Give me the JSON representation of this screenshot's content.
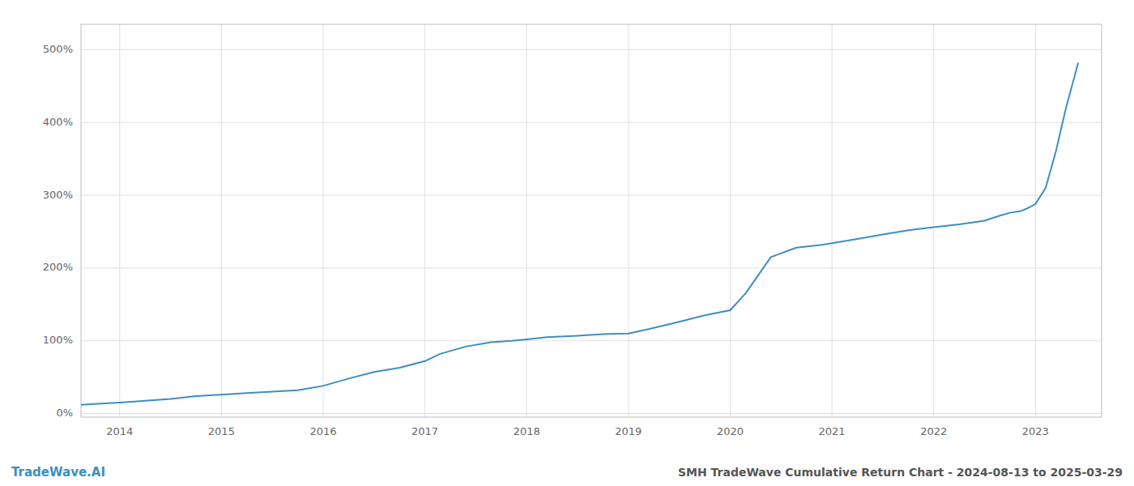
{
  "chart_data": {
    "type": "line",
    "title": "SMH TradeWave Cumulative Return Chart - 2024-08-13 to 2025-03-29",
    "annotations": [
      "TradeWave.AI"
    ],
    "color": "#3d8fbf",
    "grid": true,
    "xlim": [
      2013.62,
      2023.65
    ],
    "ylim": [
      -0.05,
      5.35
    ],
    "xticks": [
      2014,
      2015,
      2016,
      2017,
      2018,
      2019,
      2020,
      2021,
      2022,
      2023
    ],
    "yticks": [
      {
        "value": 0.0,
        "label": "0%"
      },
      {
        "value": 1.0,
        "label": "100%"
      },
      {
        "value": 2.0,
        "label": "200%"
      },
      {
        "value": 3.0,
        "label": "300%"
      },
      {
        "value": 4.0,
        "label": "400%"
      },
      {
        "value": 5.0,
        "label": "500%"
      }
    ],
    "x": [
      2013.62,
      2013.75,
      2014.0,
      2014.2,
      2014.5,
      2014.75,
      2015.0,
      2015.25,
      2015.5,
      2015.75,
      2016.0,
      2016.25,
      2016.5,
      2016.75,
      2017.0,
      2017.15,
      2017.4,
      2017.65,
      2017.85,
      2018.0,
      2018.2,
      2018.5,
      2018.75,
      2019.0,
      2019.2,
      2019.5,
      2019.75,
      2020.0,
      2020.15,
      2020.4,
      2020.65,
      2020.9,
      2021.0,
      2021.25,
      2021.5,
      2021.75,
      2022.0,
      2022.25,
      2022.5,
      2022.65,
      2022.75,
      2022.85,
      2022.92,
      2023.0,
      2023.1,
      2023.2,
      2023.3,
      2023.42
    ],
    "values": [
      0.12,
      0.13,
      0.15,
      0.17,
      0.2,
      0.24,
      0.26,
      0.28,
      0.3,
      0.32,
      0.38,
      0.48,
      0.57,
      0.63,
      0.72,
      0.82,
      0.92,
      0.98,
      1.0,
      1.02,
      1.05,
      1.07,
      1.09,
      1.1,
      1.16,
      1.26,
      1.35,
      1.42,
      1.65,
      2.15,
      2.28,
      2.32,
      2.34,
      2.4,
      2.46,
      2.52,
      2.56,
      2.6,
      2.65,
      2.72,
      2.76,
      2.78,
      2.82,
      2.88,
      3.1,
      3.6,
      4.2,
      4.82
    ]
  }
}
